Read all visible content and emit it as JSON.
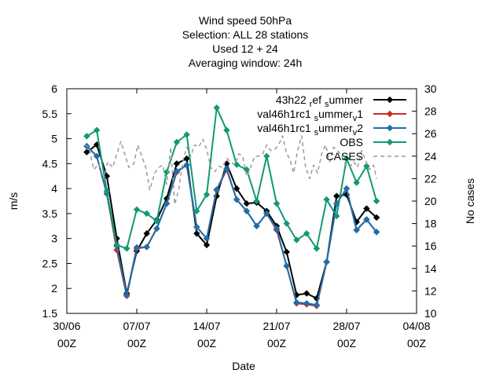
{
  "chart_data": {
    "type": "line",
    "title_lines": [
      "Wind speed 50hPa",
      "Selection: ALL      28 stations",
      "Used  12  + 24",
      "Averaging window: 24h"
    ],
    "xlabel": "Date",
    "ylabel": "m/s",
    "y2label": "No cases",
    "xlim": [
      "2023-06-30T00Z",
      "2023-08-04T00Z"
    ],
    "ylim": [
      1.5,
      6
    ],
    "y2lim": [
      10,
      30
    ],
    "x_tick_labels": [
      {
        "date": "2023-06-30",
        "line1": "30/06",
        "line2": "00Z"
      },
      {
        "date": "2023-07-07",
        "line1": "07/07",
        "line2": "00Z"
      },
      {
        "date": "2023-07-14",
        "line1": "14/07",
        "line2": "00Z"
      },
      {
        "date": "2023-07-21",
        "line1": "21/07",
        "line2": "00Z"
      },
      {
        "date": "2023-07-28",
        "line1": "28/07",
        "line2": "00Z"
      },
      {
        "date": "2023-08-04",
        "line1": "04/08",
        "line2": "00Z"
      }
    ],
    "y_ticks": [
      "1.5",
      "2",
      "2.5",
      "3",
      "3.5",
      "4",
      "4.5",
      "5",
      "5.5",
      "6"
    ],
    "y2_ticks": [
      "10",
      "12",
      "14",
      "16",
      "18",
      "20",
      "22",
      "24",
      "26",
      "28",
      "30"
    ],
    "legend_position": "top-right",
    "dates": [
      "2023-07-02",
      "2023-07-03",
      "2023-07-04",
      "2023-07-05",
      "2023-07-06",
      "2023-07-07",
      "2023-07-08",
      "2023-07-09",
      "2023-07-10",
      "2023-07-11",
      "2023-07-12",
      "2023-07-13",
      "2023-07-14",
      "2023-07-15",
      "2023-07-16",
      "2023-07-17",
      "2023-07-18",
      "2023-07-19",
      "2023-07-20",
      "2023-07-21",
      "2023-07-22",
      "2023-07-23",
      "2023-07-24",
      "2023-07-25",
      "2023-07-26",
      "2023-07-27",
      "2023-07-28",
      "2023-07-29",
      "2023-07-30",
      "2023-07-31"
    ],
    "series": [
      {
        "name_parts": [
          [
            "43h22 ",
            0
          ],
          [
            "r",
            -1
          ],
          [
            "ef ",
            0
          ],
          [
            "s",
            -1
          ],
          [
            "ummer",
            0
          ]
        ],
        "color": "#000000",
        "values": [
          4.73,
          4.88,
          4.25,
          3.0,
          1.9,
          2.75,
          3.1,
          3.37,
          3.8,
          4.5,
          4.6,
          3.1,
          2.87,
          3.85,
          4.5,
          4.0,
          3.7,
          3.72,
          3.55,
          3.25,
          2.73,
          1.87,
          1.9,
          1.8,
          2.53,
          3.85,
          3.88,
          3.33,
          3.6,
          3.42
        ]
      },
      {
        "name_parts": [
          [
            "val46h1rc1 ",
            0
          ],
          [
            "s",
            -1
          ],
          [
            "ummer",
            0
          ],
          [
            "v",
            -1
          ],
          [
            "1",
            0
          ]
        ],
        "color": "#d62a1c",
        "values": [
          4.85,
          4.65,
          3.9,
          2.77,
          1.85,
          2.8,
          2.83,
          3.2,
          3.7,
          4.33,
          4.47,
          3.23,
          3.0,
          3.97,
          4.38,
          3.78,
          3.55,
          3.25,
          3.5,
          3.17,
          2.45,
          1.7,
          1.68,
          1.65,
          2.53,
          3.7,
          4.0,
          3.17,
          3.38,
          3.13
        ]
      },
      {
        "name_parts": [
          [
            "val46h1rc1 ",
            0
          ],
          [
            "s",
            -1
          ],
          [
            "ummer",
            0
          ],
          [
            "v",
            -1
          ],
          [
            "2",
            0
          ]
        ],
        "color": "#1a6fad",
        "values": [
          4.85,
          4.65,
          3.9,
          2.85,
          1.87,
          2.82,
          2.83,
          3.2,
          3.7,
          4.35,
          4.47,
          3.23,
          3.0,
          3.98,
          4.4,
          3.78,
          3.55,
          3.25,
          3.5,
          3.2,
          2.45,
          1.72,
          1.7,
          1.67,
          2.53,
          3.7,
          4.0,
          3.17,
          3.38,
          3.13
        ]
      },
      {
        "name_parts": [
          [
            "OBS",
            0
          ]
        ],
        "color": "#109a72",
        "values": [
          5.05,
          5.17,
          3.95,
          2.87,
          2.8,
          3.58,
          3.5,
          3.35,
          4.33,
          4.93,
          5.08,
          3.55,
          3.88,
          5.62,
          5.17,
          4.48,
          4.38,
          3.75,
          4.65,
          3.7,
          3.3,
          2.97,
          3.1,
          2.8,
          3.78,
          3.45,
          4.6,
          4.12,
          4.45,
          3.75
        ]
      },
      {
        "name_parts": [
          [
            "CASES",
            0
          ]
        ],
        "color": "#9a9a9a",
        "dashed": true,
        "axis": "y2",
        "x": [
          1.8,
          2.2,
          2.7,
          3.2,
          3.7,
          4.1,
          4.6,
          5.0,
          5.4,
          5.8,
          6.2,
          6.7,
          7.1,
          7.5,
          7.9,
          8.3,
          8.8,
          9.2,
          9.6,
          10.0,
          10.4,
          10.8,
          11.2,
          11.6,
          12.0,
          12.4,
          12.8,
          13.2,
          13.6,
          14.0,
          14.4,
          14.8,
          15.2,
          15.6,
          16.0,
          16.4,
          16.8,
          17.2,
          17.6,
          18.0,
          18.4,
          18.8,
          19.2,
          19.6,
          20.0,
          20.4,
          20.8,
          21.2,
          21.6,
          22.0,
          22.3,
          22.7,
          23.1,
          23.5,
          23.9,
          24.3,
          24.7,
          25.1,
          25.5,
          25.9,
          26.3,
          26.7,
          27.1,
          27.5,
          27.9,
          28.3,
          28.7,
          29.1,
          29.5,
          29.9,
          30.3,
          30.7,
          31.0
        ],
        "values": [
          25.0,
          24.8,
          22.8,
          23.3,
          22.0,
          23.5,
          23.0,
          24.2,
          25.3,
          24.2,
          23.0,
          23.3,
          25.0,
          24.0,
          23.0,
          21.0,
          22.5,
          23.0,
          23.2,
          21.5,
          24.8,
          19.7,
          21.0,
          23.5,
          24.8,
          24.0,
          25.0,
          24.8,
          25.5,
          24.6,
          23.0,
          22.6,
          23.1,
          23.0,
          23.8,
          23.5,
          23.2,
          24.2,
          24.0,
          22.2,
          23.0,
          24.0,
          24.0,
          24.2,
          25.0,
          24.5,
          24.6,
          25.0,
          25.8,
          24.2,
          23.8,
          22.5,
          24.5,
          25.8,
          23.0,
          22.0,
          23.2,
          22.5,
          24.2,
          25.0,
          23.5,
          24.8,
          24.5,
          24.0,
          23.2,
          23.0,
          23.5,
          23.0,
          24.5,
          23.6,
          22.8,
          23.2,
          22.0
        ]
      }
    ]
  }
}
